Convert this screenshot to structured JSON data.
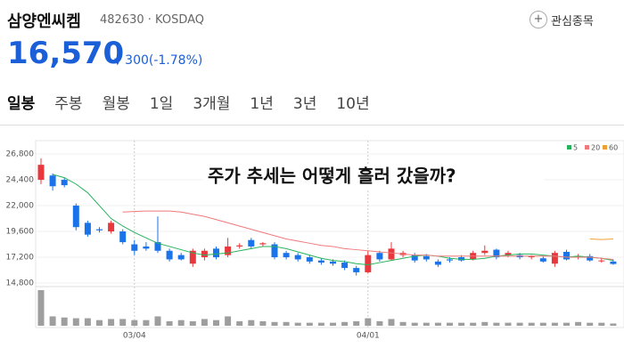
{
  "header": {
    "name": "삼양엔씨켐",
    "code": "482630",
    "market": "KOSDAQ",
    "watch": "관심종목"
  },
  "price": {
    "value": "16,570",
    "change": "300(-1.78%)"
  },
  "tabs": [
    "일봉",
    "주봉",
    "월봉",
    "1일",
    "3개월",
    "1년",
    "3년",
    "10년"
  ],
  "chart_data": {
    "type": "candlestick",
    "title": "주가 추세는 어떻게 흘러 갔을까?",
    "categories": [
      null,
      null,
      null,
      null,
      null,
      null,
      null,
      null,
      "03/04",
      null,
      null,
      null,
      null,
      null,
      null,
      null,
      null,
      null,
      null,
      null,
      null,
      null,
      null,
      null,
      null,
      null,
      null,
      null,
      "04/01",
      null,
      null,
      null,
      null,
      null,
      null,
      null,
      null,
      null,
      null,
      null,
      null,
      null,
      null,
      null,
      null,
      null,
      null,
      null,
      null,
      null
    ],
    "open": [
      24400,
      24800,
      24400,
      22000,
      20400,
      19800,
      19600,
      19600,
      18400,
      18200,
      18600,
      17800,
      17400,
      16600,
      17200,
      18000,
      17400,
      18200,
      18800,
      18400,
      18400,
      17600,
      17400,
      17200,
      16900,
      16800,
      16700,
      16200,
      15800,
      17600,
      17000,
      17400,
      17400,
      17300,
      16800,
      17000,
      17200,
      17000,
      17600,
      17900,
      17400,
      17400,
      17200,
      17100,
      16600,
      17700,
      17200,
      17300,
      16900,
      16800
    ],
    "high": [
      26400,
      25000,
      24600,
      22200,
      20600,
      20000,
      20600,
      19800,
      18800,
      18600,
      21000,
      18000,
      17600,
      18000,
      18000,
      18200,
      19000,
      18500,
      19000,
      18600,
      18600,
      17800,
      17600,
      17400,
      17100,
      17000,
      16900,
      16400,
      17800,
      17800,
      18600,
      17800,
      17600,
      17500,
      17000,
      17200,
      17400,
      17800,
      18300,
      18000,
      17800,
      17600,
      17400,
      17300,
      17800,
      17900,
      17500,
      17500,
      17100,
      17000
    ],
    "low": [
      24000,
      23400,
      23700,
      19700,
      19100,
      19500,
      19400,
      18400,
      17400,
      17800,
      17600,
      16800,
      16900,
      16300,
      16900,
      17000,
      17200,
      18000,
      18000,
      18200,
      17000,
      17000,
      16800,
      16600,
      16500,
      16400,
      16000,
      15500,
      15700,
      16800,
      16900,
      17200,
      16700,
      16800,
      16300,
      16700,
      16800,
      16900,
      17400,
      17000,
      17200,
      17000,
      17000,
      16700,
      16300,
      16900,
      17000,
      16800,
      16700,
      16500
    ],
    "close": [
      25800,
      23800,
      23900,
      20000,
      19300,
      19700,
      20400,
      18600,
      17800,
      18000,
      17800,
      17000,
      17000,
      17800,
      17800,
      17200,
      18200,
      18300,
      18200,
      18500,
      17200,
      17200,
      17000,
      16800,
      16700,
      16600,
      16200,
      15800,
      17400,
      17000,
      18000,
      17600,
      16900,
      17000,
      16500,
      16900,
      16900,
      17600,
      17800,
      17200,
      17600,
      17200,
      17300,
      16800,
      17600,
      17000,
      17300,
      16900,
      16900,
      16570
    ],
    "up_color": "#e8383d",
    "down_color": "#1a73e8",
    "series": [
      {
        "name": "5",
        "color": "#25b35a",
        "values": [
          null,
          24900,
          24600,
          24000,
          23200,
          22000,
          20800,
          20100,
          19500,
          19000,
          18500,
          18200,
          17900,
          17600,
          17400,
          17500,
          17600,
          17800,
          18000,
          18200,
          18200,
          18000,
          17700,
          17400,
          17100,
          16900,
          16800,
          16600,
          16500,
          16700,
          16900,
          17100,
          17300,
          17400,
          17300,
          17100,
          17000,
          17000,
          17100,
          17300,
          17400,
          17500,
          17500,
          17400,
          17300,
          17200,
          17300,
          17200,
          17100,
          16900
        ]
      },
      {
        "name": "20",
        "color": "#f07a7a",
        "values": [
          null,
          null,
          null,
          null,
          null,
          null,
          null,
          21400,
          21450,
          21500,
          21500,
          21500,
          21400,
          21200,
          21000,
          20700,
          20400,
          20100,
          19800,
          19500,
          19200,
          18900,
          18700,
          18500,
          18300,
          18200,
          18000,
          17900,
          17800,
          17700,
          17600,
          17500,
          17400,
          17400,
          17300,
          17300,
          17300,
          17300,
          17300,
          17300,
          17300,
          17300,
          17300,
          17300,
          17300,
          17200,
          17200,
          17200,
          17100,
          17000
        ]
      },
      {
        "name": "60",
        "color": "#f0a030",
        "values": [
          null,
          null,
          null,
          null,
          null,
          null,
          null,
          null,
          null,
          null,
          null,
          null,
          null,
          null,
          null,
          null,
          null,
          null,
          null,
          null,
          null,
          null,
          null,
          null,
          null,
          null,
          null,
          null,
          null,
          null,
          null,
          null,
          null,
          null,
          null,
          null,
          null,
          null,
          null,
          null,
          null,
          null,
          null,
          null,
          null,
          null,
          null,
          18900,
          18850,
          18900
        ]
      }
    ],
    "volume": [
      95,
      25,
      22,
      20,
      20,
      15,
      18,
      18,
      15,
      15,
      25,
      12,
      15,
      12,
      18,
      15,
      25,
      12,
      15,
      12,
      10,
      10,
      8,
      8,
      8,
      8,
      10,
      12,
      20,
      12,
      18,
      10,
      8,
      8,
      8,
      8,
      8,
      8,
      10,
      8,
      8,
      8,
      8,
      8,
      8,
      8,
      10,
      8,
      8,
      6
    ],
    "ylim": [
      14470,
      27880
    ],
    "yticks": [
      {
        "value": 14800,
        "label": "14,800"
      },
      {
        "value": 17200,
        "label": "17,200"
      },
      {
        "value": 19600,
        "label": "19,600"
      },
      {
        "value": 22000,
        "label": "22,000"
      },
      {
        "value": 24400,
        "label": "24,400"
      },
      {
        "value": 26800,
        "label": "26,800"
      }
    ],
    "grid": true
  }
}
